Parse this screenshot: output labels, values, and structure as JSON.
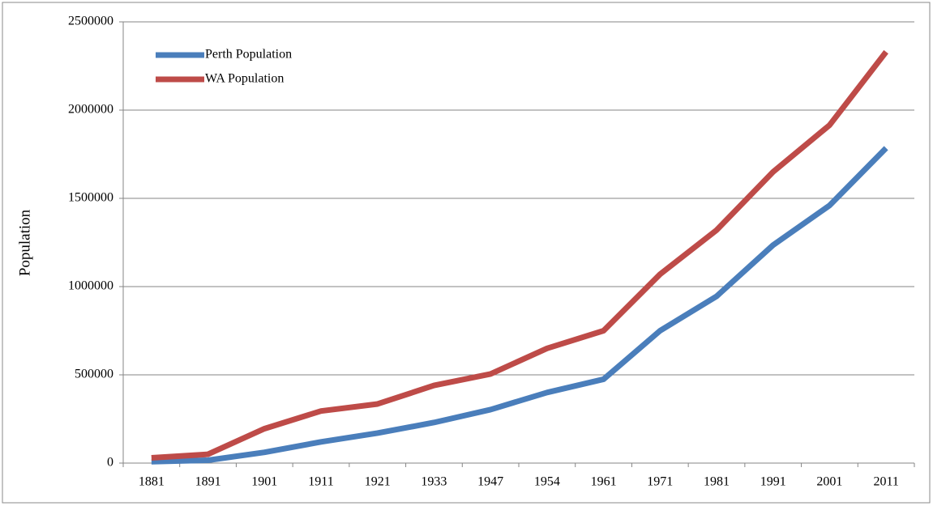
{
  "chart_data": {
    "type": "line",
    "y_label": "Population",
    "categories": [
      "1881",
      "1891",
      "1901",
      "1911",
      "1921",
      "1933",
      "1947",
      "1954",
      "1961",
      "1971",
      "1981",
      "1991",
      "2001",
      "2011"
    ],
    "series": [
      {
        "name": "Perth Population",
        "color": "#4a7ebb",
        "values": [
          8000,
          16000,
          61000,
          120000,
          170000,
          230000,
          303000,
          400000,
          475000,
          750000,
          945000,
          1235000,
          1460000,
          1785000
        ]
      },
      {
        "name": "WA Population",
        "color": "#be4b48",
        "values": [
          30000,
          50000,
          195000,
          295000,
          335000,
          440000,
          505000,
          650000,
          750000,
          1070000,
          1320000,
          1650000,
          1915000,
          2330000
        ]
      }
    ],
    "ylim": [
      0,
      2500000
    ],
    "yticks": [
      0,
      500000,
      1000000,
      1500000,
      2000000,
      2500000
    ],
    "grid": true,
    "legend": "top-left"
  }
}
